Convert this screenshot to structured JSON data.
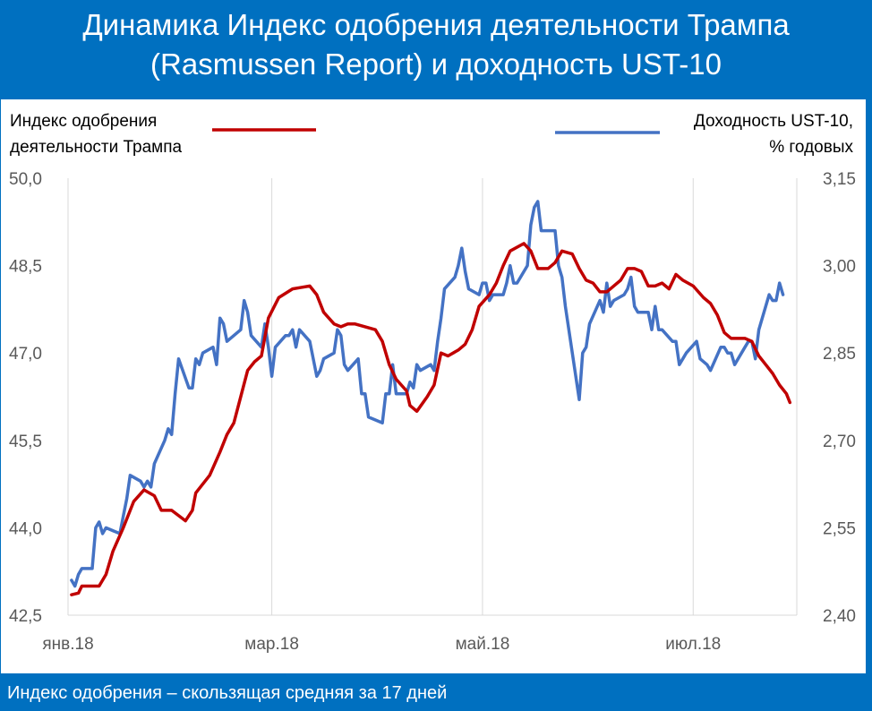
{
  "header": {
    "title_line1": "Динамика Индекс одобрения деятельности Трампа",
    "title_line2": "(Rasmussen Report) и доходность UST-10"
  },
  "footer": {
    "note": "Индекс одобрения – скользящая средняя за 17 дней"
  },
  "colors": {
    "background": "#0070c0",
    "red_series": "#c00000",
    "blue_series": "#4472c4",
    "grid": "#d9d9d9"
  },
  "chart_data": {
    "type": "line",
    "x_type": "time",
    "x_range": [
      "2018-01-01",
      "2018-07-31"
    ],
    "x_ticks": [
      {
        "date": "2018-01-01",
        "label": "янв.18"
      },
      {
        "date": "2018-03-01",
        "label": "мар.18"
      },
      {
        "date": "2018-05-01",
        "label": "май.18"
      },
      {
        "date": "2018-07-01",
        "label": "июл.18"
      }
    ],
    "y_left": {
      "label_line1": "Индекс одобрения",
      "label_line2": "деятельности Трампа",
      "range": [
        42.5,
        50.0
      ],
      "ticks": [
        "42,5",
        "44,0",
        "45,5",
        "47,0",
        "48,5",
        "50,0"
      ]
    },
    "y_right": {
      "label_line1": "Доходность UST-10,",
      "label_line2": "% годовых",
      "range": [
        2.4,
        3.15
      ],
      "ticks": [
        "2,40",
        "2,55",
        "2,70",
        "2,85",
        "3,00",
        "3,15"
      ]
    },
    "grid": "vertical",
    "series": [
      {
        "name": "Индекс одобрения деятельности Трампа",
        "axis": "left",
        "color": "#c00000",
        "points": [
          [
            "2018-01-02",
            42.85
          ],
          [
            "2018-01-04",
            42.88
          ],
          [
            "2018-01-05",
            43.0
          ],
          [
            "2018-01-10",
            43.0
          ],
          [
            "2018-01-12",
            43.2
          ],
          [
            "2018-01-14",
            43.6
          ],
          [
            "2018-01-17",
            44.0
          ],
          [
            "2018-01-20",
            44.45
          ],
          [
            "2018-01-23",
            44.65
          ],
          [
            "2018-01-26",
            44.55
          ],
          [
            "2018-01-28",
            44.3
          ],
          [
            "2018-01-31",
            44.3
          ],
          [
            "2018-02-04",
            44.12
          ],
          [
            "2018-02-06",
            44.3
          ],
          [
            "2018-02-07",
            44.6
          ],
          [
            "2018-02-11",
            44.9
          ],
          [
            "2018-02-14",
            45.3
          ],
          [
            "2018-02-16",
            45.6
          ],
          [
            "2018-02-18",
            45.8
          ],
          [
            "2018-02-20",
            46.25
          ],
          [
            "2018-02-22",
            46.7
          ],
          [
            "2018-02-24",
            46.85
          ],
          [
            "2018-02-26",
            46.95
          ],
          [
            "2018-02-28",
            47.6
          ],
          [
            "2018-03-03",
            47.95
          ],
          [
            "2018-03-07",
            48.1
          ],
          [
            "2018-03-09",
            48.12
          ],
          [
            "2018-03-12",
            48.15
          ],
          [
            "2018-03-14",
            48.0
          ],
          [
            "2018-03-16",
            47.7
          ],
          [
            "2018-03-19",
            47.5
          ],
          [
            "2018-03-21",
            47.45
          ],
          [
            "2018-03-23",
            47.5
          ],
          [
            "2018-03-25",
            47.5
          ],
          [
            "2018-03-28",
            47.45
          ],
          [
            "2018-03-31",
            47.4
          ],
          [
            "2018-04-02",
            47.2
          ],
          [
            "2018-04-04",
            46.8
          ],
          [
            "2018-04-06",
            46.55
          ],
          [
            "2018-04-09",
            46.35
          ],
          [
            "2018-04-10",
            46.1
          ],
          [
            "2018-04-12",
            46.0
          ],
          [
            "2018-04-15",
            46.25
          ],
          [
            "2018-04-17",
            46.45
          ],
          [
            "2018-04-19",
            47.0
          ],
          [
            "2018-04-21",
            46.95
          ],
          [
            "2018-04-24",
            47.05
          ],
          [
            "2018-04-26",
            47.15
          ],
          [
            "2018-04-28",
            47.4
          ],
          [
            "2018-04-30",
            47.8
          ],
          [
            "2018-05-03",
            48.0
          ],
          [
            "2018-05-05",
            48.2
          ],
          [
            "2018-05-07",
            48.5
          ],
          [
            "2018-05-09",
            48.75
          ],
          [
            "2018-05-13",
            48.88
          ],
          [
            "2018-05-15",
            48.75
          ],
          [
            "2018-05-17",
            48.45
          ],
          [
            "2018-05-20",
            48.45
          ],
          [
            "2018-05-22",
            48.55
          ],
          [
            "2018-05-24",
            48.75
          ],
          [
            "2018-05-27",
            48.7
          ],
          [
            "2018-05-29",
            48.45
          ],
          [
            "2018-05-31",
            48.25
          ],
          [
            "2018-06-02",
            48.2
          ],
          [
            "2018-06-04",
            48.05
          ],
          [
            "2018-06-06",
            48.05
          ],
          [
            "2018-06-08",
            48.15
          ],
          [
            "2018-06-10",
            48.25
          ],
          [
            "2018-06-12",
            48.45
          ],
          [
            "2018-06-14",
            48.45
          ],
          [
            "2018-06-16",
            48.4
          ],
          [
            "2018-06-18",
            48.15
          ],
          [
            "2018-06-20",
            48.15
          ],
          [
            "2018-06-22",
            48.2
          ],
          [
            "2018-06-24",
            48.1
          ],
          [
            "2018-06-26",
            48.35
          ],
          [
            "2018-06-28",
            48.25
          ],
          [
            "2018-07-01",
            48.15
          ],
          [
            "2018-07-04",
            47.95
          ],
          [
            "2018-07-06",
            47.85
          ],
          [
            "2018-07-08",
            47.65
          ],
          [
            "2018-07-10",
            47.35
          ],
          [
            "2018-07-12",
            47.25
          ],
          [
            "2018-07-14",
            47.25
          ],
          [
            "2018-07-16",
            47.25
          ],
          [
            "2018-07-18",
            47.2
          ],
          [
            "2018-07-20",
            46.95
          ],
          [
            "2018-07-22",
            46.8
          ],
          [
            "2018-07-24",
            46.65
          ],
          [
            "2018-07-26",
            46.45
          ],
          [
            "2018-07-28",
            46.3
          ],
          [
            "2018-07-29",
            46.15
          ]
        ]
      },
      {
        "name": "Доходность UST-10, % годовых",
        "axis": "right",
        "color": "#4472c4",
        "points": [
          [
            "2018-01-02",
            2.46
          ],
          [
            "2018-01-03",
            2.45
          ],
          [
            "2018-01-04",
            2.47
          ],
          [
            "2018-01-05",
            2.48
          ],
          [
            "2018-01-08",
            2.48
          ],
          [
            "2018-01-09",
            2.55
          ],
          [
            "2018-01-10",
            2.56
          ],
          [
            "2018-01-11",
            2.54
          ],
          [
            "2018-01-12",
            2.55
          ],
          [
            "2018-01-16",
            2.54
          ],
          [
            "2018-01-17",
            2.57
          ],
          [
            "2018-01-18",
            2.6
          ],
          [
            "2018-01-19",
            2.64
          ],
          [
            "2018-01-22",
            2.63
          ],
          [
            "2018-01-23",
            2.62
          ],
          [
            "2018-01-24",
            2.63
          ],
          [
            "2018-01-25",
            2.62
          ],
          [
            "2018-01-26",
            2.66
          ],
          [
            "2018-01-29",
            2.7
          ],
          [
            "2018-01-30",
            2.72
          ],
          [
            "2018-01-31",
            2.71
          ],
          [
            "2018-02-01",
            2.78
          ],
          [
            "2018-02-02",
            2.84
          ],
          [
            "2018-02-05",
            2.79
          ],
          [
            "2018-02-06",
            2.79
          ],
          [
            "2018-02-07",
            2.84
          ],
          [
            "2018-02-08",
            2.83
          ],
          [
            "2018-02-09",
            2.85
          ],
          [
            "2018-02-12",
            2.86
          ],
          [
            "2018-02-13",
            2.83
          ],
          [
            "2018-02-14",
            2.91
          ],
          [
            "2018-02-15",
            2.9
          ],
          [
            "2018-02-16",
            2.87
          ],
          [
            "2018-02-20",
            2.89
          ],
          [
            "2018-02-21",
            2.94
          ],
          [
            "2018-02-22",
            2.92
          ],
          [
            "2018-02-23",
            2.88
          ],
          [
            "2018-02-26",
            2.86
          ],
          [
            "2018-02-27",
            2.9
          ],
          [
            "2018-02-28",
            2.86
          ],
          [
            "2018-03-01",
            2.81
          ],
          [
            "2018-03-02",
            2.86
          ],
          [
            "2018-03-05",
            2.88
          ],
          [
            "2018-03-06",
            2.88
          ],
          [
            "2018-03-07",
            2.89
          ],
          [
            "2018-03-08",
            2.86
          ],
          [
            "2018-03-09",
            2.89
          ],
          [
            "2018-03-12",
            2.87
          ],
          [
            "2018-03-13",
            2.84
          ],
          [
            "2018-03-14",
            2.81
          ],
          [
            "2018-03-15",
            2.82
          ],
          [
            "2018-03-16",
            2.84
          ],
          [
            "2018-03-19",
            2.85
          ],
          [
            "2018-03-20",
            2.89
          ],
          [
            "2018-03-21",
            2.88
          ],
          [
            "2018-03-22",
            2.83
          ],
          [
            "2018-03-23",
            2.82
          ],
          [
            "2018-03-26",
            2.84
          ],
          [
            "2018-03-27",
            2.78
          ],
          [
            "2018-03-28",
            2.78
          ],
          [
            "2018-03-29",
            2.74
          ],
          [
            "2018-04-02",
            2.73
          ],
          [
            "2018-04-03",
            2.78
          ],
          [
            "2018-04-04",
            2.78
          ],
          [
            "2018-04-05",
            2.83
          ],
          [
            "2018-04-06",
            2.78
          ],
          [
            "2018-04-09",
            2.78
          ],
          [
            "2018-04-10",
            2.8
          ],
          [
            "2018-04-11",
            2.79
          ],
          [
            "2018-04-12",
            2.83
          ],
          [
            "2018-04-13",
            2.82
          ],
          [
            "2018-04-16",
            2.83
          ],
          [
            "2018-04-17",
            2.82
          ],
          [
            "2018-04-18",
            2.87
          ],
          [
            "2018-04-19",
            2.91
          ],
          [
            "2018-04-20",
            2.96
          ],
          [
            "2018-04-23",
            2.98
          ],
          [
            "2018-04-24",
            3.0
          ],
          [
            "2018-04-25",
            3.03
          ],
          [
            "2018-04-26",
            2.99
          ],
          [
            "2018-04-27",
            2.96
          ],
          [
            "2018-04-30",
            2.95
          ],
          [
            "2018-05-01",
            2.97
          ],
          [
            "2018-05-02",
            2.97
          ],
          [
            "2018-05-03",
            2.94
          ],
          [
            "2018-05-04",
            2.95
          ],
          [
            "2018-05-07",
            2.95
          ],
          [
            "2018-05-08",
            2.97
          ],
          [
            "2018-05-09",
            3.0
          ],
          [
            "2018-05-10",
            2.97
          ],
          [
            "2018-05-11",
            2.97
          ],
          [
            "2018-05-14",
            3.0
          ],
          [
            "2018-05-15",
            3.07
          ],
          [
            "2018-05-16",
            3.1
          ],
          [
            "2018-05-17",
            3.11
          ],
          [
            "2018-05-18",
            3.06
          ],
          [
            "2018-05-21",
            3.06
          ],
          [
            "2018-05-22",
            3.06
          ],
          [
            "2018-05-23",
            3.0
          ],
          [
            "2018-05-24",
            2.98
          ],
          [
            "2018-05-25",
            2.93
          ],
          [
            "2018-05-29",
            2.77
          ],
          [
            "2018-05-30",
            2.85
          ],
          [
            "2018-05-31",
            2.86
          ],
          [
            "2018-06-01",
            2.9
          ],
          [
            "2018-06-04",
            2.94
          ],
          [
            "2018-06-05",
            2.92
          ],
          [
            "2018-06-06",
            2.97
          ],
          [
            "2018-06-07",
            2.93
          ],
          [
            "2018-06-08",
            2.94
          ],
          [
            "2018-06-11",
            2.95
          ],
          [
            "2018-06-12",
            2.96
          ],
          [
            "2018-06-13",
            2.98
          ],
          [
            "2018-06-14",
            2.93
          ],
          [
            "2018-06-15",
            2.92
          ],
          [
            "2018-06-18",
            2.92
          ],
          [
            "2018-06-19",
            2.89
          ],
          [
            "2018-06-20",
            2.93
          ],
          [
            "2018-06-21",
            2.89
          ],
          [
            "2018-06-22",
            2.89
          ],
          [
            "2018-06-25",
            2.87
          ],
          [
            "2018-06-26",
            2.87
          ],
          [
            "2018-06-27",
            2.83
          ],
          [
            "2018-06-28",
            2.84
          ],
          [
            "2018-06-29",
            2.85
          ],
          [
            "2018-07-02",
            2.87
          ],
          [
            "2018-07-03",
            2.84
          ],
          [
            "2018-07-05",
            2.83
          ],
          [
            "2018-07-06",
            2.82
          ],
          [
            "2018-07-09",
            2.86
          ],
          [
            "2018-07-10",
            2.86
          ],
          [
            "2018-07-11",
            2.85
          ],
          [
            "2018-07-12",
            2.85
          ],
          [
            "2018-07-13",
            2.83
          ],
          [
            "2018-07-16",
            2.86
          ],
          [
            "2018-07-17",
            2.87
          ],
          [
            "2018-07-18",
            2.87
          ],
          [
            "2018-07-19",
            2.84
          ],
          [
            "2018-07-20",
            2.89
          ],
          [
            "2018-07-23",
            2.95
          ],
          [
            "2018-07-24",
            2.94
          ],
          [
            "2018-07-25",
            2.94
          ],
          [
            "2018-07-26",
            2.97
          ],
          [
            "2018-07-27",
            2.95
          ]
        ]
      }
    ]
  }
}
